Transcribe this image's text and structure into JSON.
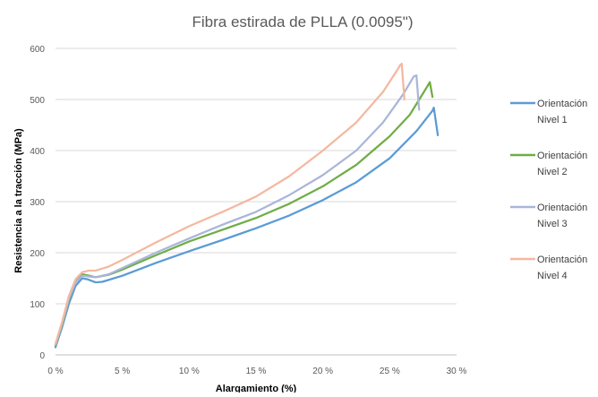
{
  "chart_data": {
    "type": "line",
    "title": "Fibra estirada de PLLA (0.0095\")",
    "xlabel": "Alargamiento (%)",
    "ylabel": "Resistencia a la tracción (MPa)",
    "xlim": [
      0,
      30
    ],
    "ylim": [
      0,
      600
    ],
    "x_ticks": [
      0,
      5,
      10,
      15,
      20,
      25,
      30
    ],
    "x_tick_labels": [
      "0 %",
      "5 %",
      "10 %",
      "15 %",
      "20 %",
      "25 %",
      "30 %"
    ],
    "y_ticks": [
      0,
      100,
      200,
      300,
      400,
      500,
      600
    ],
    "y_tick_labels": [
      "0",
      "100",
      "200",
      "300",
      "400",
      "500",
      "600"
    ],
    "grid": "horizontal",
    "legend_position": "right",
    "series": [
      {
        "name": "Orientación Nivel 1",
        "legend_lines": [
          "Orientación",
          "Nivel 1"
        ],
        "color": "#5b9bd5",
        "points": [
          [
            0,
            15
          ],
          [
            0.5,
            55
          ],
          [
            1,
            100
          ],
          [
            1.5,
            135
          ],
          [
            2,
            150
          ],
          [
            2.4,
            148
          ],
          [
            3,
            142
          ],
          [
            3.5,
            143
          ],
          [
            5,
            155
          ],
          [
            7.5,
            180
          ],
          [
            10,
            203
          ],
          [
            12.5,
            225
          ],
          [
            15,
            248
          ],
          [
            17.5,
            273
          ],
          [
            20,
            303
          ],
          [
            22.5,
            338
          ],
          [
            25,
            385
          ],
          [
            27,
            438
          ],
          [
            28.2,
            478
          ],
          [
            28.3,
            484
          ],
          [
            28.6,
            430
          ]
        ]
      },
      {
        "name": "Orientación Nivel 2",
        "legend_lines": [
          "Orientación",
          "Nivel 2"
        ],
        "color": "#70ad47",
        "points": [
          [
            0,
            18
          ],
          [
            0.5,
            60
          ],
          [
            1,
            108
          ],
          [
            1.5,
            143
          ],
          [
            2,
            158
          ],
          [
            2.5,
            155
          ],
          [
            3,
            152
          ],
          [
            4,
            157
          ],
          [
            5,
            167
          ],
          [
            7.5,
            195
          ],
          [
            10,
            222
          ],
          [
            12.5,
            245
          ],
          [
            15,
            268
          ],
          [
            17.5,
            296
          ],
          [
            20,
            330
          ],
          [
            22.5,
            372
          ],
          [
            25,
            428
          ],
          [
            26.5,
            470
          ],
          [
            27.8,
            525
          ],
          [
            28,
            534
          ],
          [
            28.2,
            505
          ]
        ]
      },
      {
        "name": "Orientación Nivel 3",
        "legend_lines": [
          "Orientación",
          "Nivel 3"
        ],
        "color": "#a9b6da",
        "points": [
          [
            0,
            20
          ],
          [
            0.5,
            62
          ],
          [
            1,
            110
          ],
          [
            1.5,
            142
          ],
          [
            2,
            155
          ],
          [
            2.6,
            153
          ],
          [
            3,
            152
          ],
          [
            4,
            158
          ],
          [
            5,
            170
          ],
          [
            7.5,
            200
          ],
          [
            10,
            228
          ],
          [
            12.5,
            255
          ],
          [
            15,
            280
          ],
          [
            17.5,
            313
          ],
          [
            20,
            352
          ],
          [
            22.5,
            400
          ],
          [
            24.5,
            455
          ],
          [
            26,
            510
          ],
          [
            26.8,
            545
          ],
          [
            27,
            547
          ],
          [
            27.2,
            480
          ]
        ]
      },
      {
        "name": "Orientación Nivel 4",
        "legend_lines": [
          "Orientación",
          "Nivel 4"
        ],
        "color": "#f4b8a0",
        "points": [
          [
            0,
            22
          ],
          [
            0.5,
            65
          ],
          [
            1,
            115
          ],
          [
            1.5,
            148
          ],
          [
            2,
            162
          ],
          [
            2.5,
            165
          ],
          [
            3,
            165
          ],
          [
            4,
            173
          ],
          [
            5,
            186
          ],
          [
            7.5,
            220
          ],
          [
            10,
            252
          ],
          [
            12.5,
            280
          ],
          [
            15,
            310
          ],
          [
            17.5,
            350
          ],
          [
            20,
            400
          ],
          [
            22.5,
            455
          ],
          [
            24.5,
            515
          ],
          [
            25.5,
            555
          ],
          [
            25.8,
            568
          ],
          [
            25.9,
            570
          ],
          [
            26.1,
            500
          ]
        ]
      }
    ]
  }
}
